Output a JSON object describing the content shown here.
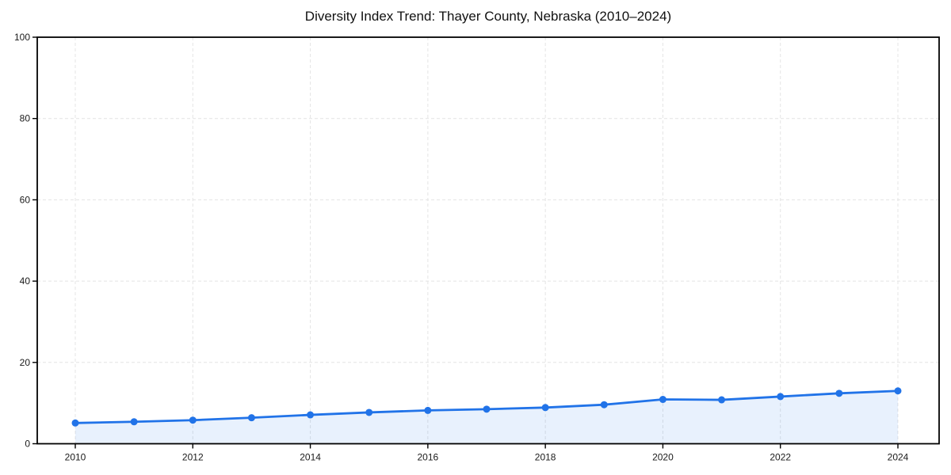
{
  "page": {
    "background": "#ffffff"
  },
  "chart_data": {
    "type": "line",
    "title": "Diversity Index Trend: Thayer County, Nebraska (2010–2024)",
    "xlabel": "",
    "ylabel": "",
    "x": [
      2010,
      2011,
      2012,
      2013,
      2014,
      2015,
      2016,
      2017,
      2018,
      2019,
      2020,
      2021,
      2022,
      2023,
      2024
    ],
    "series": [
      {
        "name": "Diversity Index",
        "values": [
          5.1,
          5.4,
          5.8,
          6.4,
          7.1,
          7.7,
          8.2,
          8.5,
          8.9,
          9.6,
          10.9,
          10.8,
          11.6,
          12.4,
          13.0
        ]
      }
    ],
    "ylim": [
      0,
      100
    ],
    "yticks": [
      0,
      20,
      40,
      60,
      80,
      100
    ],
    "xticks": [
      2010,
      2012,
      2014,
      2016,
      2018,
      2020,
      2022,
      2024
    ],
    "grid": "dashed",
    "legend": "none",
    "line_color": "#2173e8",
    "fill_opacity": 0.1,
    "marker": "circle",
    "marker_radius": 4.5,
    "grid_color": "#e4e4e4",
    "axis_color": "#000000",
    "tick_label_color": "#1a1a1a"
  }
}
